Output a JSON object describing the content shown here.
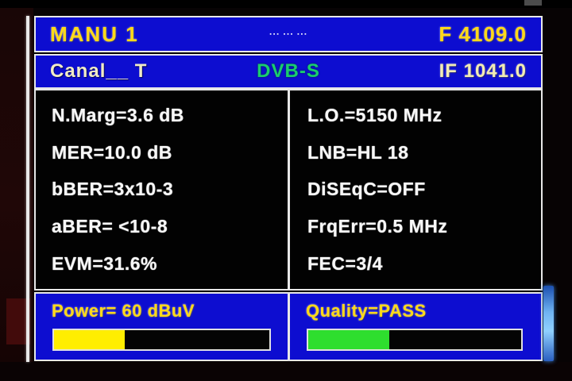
{
  "header": {
    "title": "MANU 1",
    "ticker": "▪▪▪ ▪▪▪ ▪▪▪",
    "frequency": "F 4109.0"
  },
  "subheader": {
    "channel": "Canal__ T",
    "standard": "DVB-S",
    "if_frequency": "IF 1041.0"
  },
  "measurements": {
    "left": [
      "N.Marg=3.6 dB",
      "MER=10.0 dB",
      "bBER=3x10-3",
      "aBER= <10-8",
      "EVM=31.6%"
    ],
    "right": [
      "L.O.=5150 MHz",
      "LNB=HL 18",
      "DiSEqC=OFF",
      "FrqErr=0.5 MHz",
      "FEC=3/4"
    ]
  },
  "power": {
    "label": "Power= 60 dBuV",
    "percent": 33,
    "bar_color": "#ffee00"
  },
  "quality": {
    "label": "Quality=PASS",
    "percent": 38,
    "bar_color": "#2ede2e"
  },
  "colors": {
    "panel_blue": "#0d0dd0",
    "accent_yellow": "#ffd919",
    "standard_green": "#19cd6e",
    "border_white": "#e8e8e8"
  }
}
